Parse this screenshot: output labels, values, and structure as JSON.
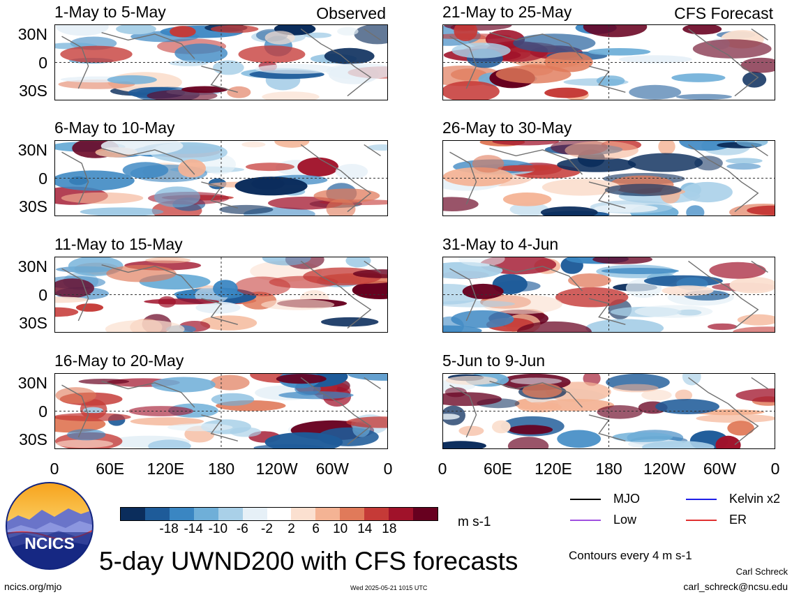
{
  "title": "5-day UWND200 with CFS forecasts",
  "site": "ncics.org/mjo",
  "timestamp": "Wed 2025-05-21 1015 UTC",
  "author": "Carl Schreck",
  "email": "carl_schreck@ncsu.edu",
  "logo_text": "NCICS",
  "contours_note": "Contours every 4 m s-1",
  "units": "m s-1",
  "latitude_ticks": [
    "30N",
    "0",
    "30S"
  ],
  "longitude_ticks": [
    "0",
    "60E",
    "120E",
    "180",
    "120W",
    "60W",
    "0"
  ],
  "colorbar": {
    "ticks": [
      "-18",
      "-14",
      "-10",
      "-6",
      "-2",
      "2",
      "6",
      "10",
      "14",
      "18"
    ],
    "colors": [
      "#0b2d5c",
      "#1e5b99",
      "#3a86c2",
      "#6fafd8",
      "#a9d0e8",
      "#e6f0f7",
      "#ffffff",
      "#fbe0d0",
      "#f4b394",
      "#e07a5a",
      "#c53a37",
      "#a0122a",
      "#67001f"
    ]
  },
  "legend": [
    {
      "label": "MJO",
      "color": "#000000"
    },
    {
      "label": "Kelvin x2",
      "color": "#1f1fe8"
    },
    {
      "label": "Low",
      "color": "#a050e0"
    },
    {
      "label": "ER",
      "color": "#e03030"
    }
  ],
  "panels": {
    "observed": [
      {
        "title": "1-May to 5-May",
        "label": "Observed"
      },
      {
        "title": "6-May to 10-May",
        "label": ""
      },
      {
        "title": "11-May to 15-May",
        "label": ""
      },
      {
        "title": "16-May to 20-May",
        "label": ""
      }
    ],
    "forecast": [
      {
        "title": "21-May to 25-May",
        "label": "CFS Forecast"
      },
      {
        "title": "26-May to 30-May",
        "label": ""
      },
      {
        "title": "31-May to 4-Jun",
        "label": ""
      },
      {
        "title": "5-Jun to 9-Jun",
        "label": ""
      }
    ]
  }
}
